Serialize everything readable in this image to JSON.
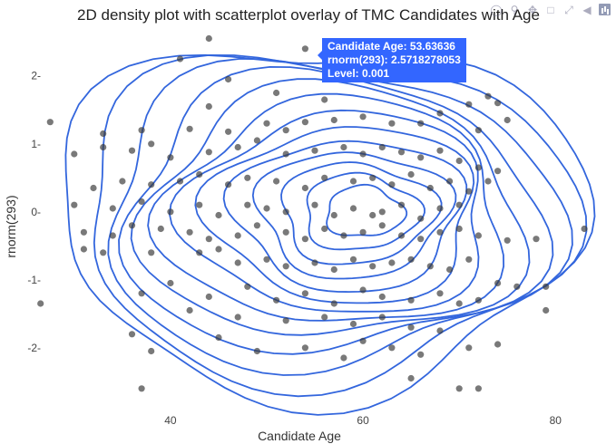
{
  "chart_data": {
    "type": "scatter",
    "title": "2D density plot with scatterplot overlay of TMC Candidates with Age",
    "xlabel": "Candidate Age",
    "ylabel": "rnorm(293)",
    "xlim": [
      27,
      84.5
    ],
    "ylim": [
      -2.95,
      2.65
    ],
    "x_ticks": [
      40,
      60,
      80
    ],
    "y_ticks": [
      2,
      1,
      0,
      -1,
      -2
    ],
    "x_tick_labels": [
      "40",
      "60",
      "80"
    ],
    "y_tick_labels": [
      "2-",
      "1-",
      "0-",
      "-1-",
      "-2-"
    ],
    "grid": false,
    "legend": "none",
    "point_color": "#3a3a3a",
    "contour_color": "#3366dd",
    "contour_center": [
      60.5,
      0.0
    ],
    "contour_levels": 13,
    "points": [
      [
        44,
        2.55
      ],
      [
        41,
        2.25
      ],
      [
        46,
        1.95
      ],
      [
        54,
        2.4
      ],
      [
        58,
        2.15
      ],
      [
        51,
        1.75
      ],
      [
        56,
        1.65
      ],
      [
        44,
        1.55
      ],
      [
        27.5,
        1.32
      ],
      [
        33,
        1.15
      ],
      [
        37,
        1.2
      ],
      [
        38,
        1.0
      ],
      [
        42,
        1.22
      ],
      [
        46,
        1.18
      ],
      [
        50,
        1.3
      ],
      [
        52,
        1.2
      ],
      [
        54,
        1.32
      ],
      [
        57,
        1.35
      ],
      [
        60,
        1.4
      ],
      [
        63,
        1.3
      ],
      [
        66,
        1.3
      ],
      [
        68,
        1.45
      ],
      [
        72,
        1.2
      ],
      [
        75,
        1.35
      ],
      [
        74,
        1.6
      ],
      [
        73,
        1.7
      ],
      [
        71,
        1.58
      ],
      [
        30,
        0.85
      ],
      [
        33,
        0.95
      ],
      [
        36,
        0.9
      ],
      [
        40,
        0.8
      ],
      [
        44,
        0.88
      ],
      [
        47,
        0.95
      ],
      [
        49,
        1.05
      ],
      [
        52,
        0.85
      ],
      [
        55,
        0.9
      ],
      [
        58,
        0.95
      ],
      [
        60,
        0.85
      ],
      [
        62,
        0.95
      ],
      [
        64,
        0.88
      ],
      [
        66,
        0.8
      ],
      [
        68,
        0.9
      ],
      [
        70,
        0.75
      ],
      [
        72,
        0.65
      ],
      [
        74,
        0.6
      ],
      [
        32,
        0.35
      ],
      [
        35,
        0.45
      ],
      [
        38,
        0.4
      ],
      [
        41,
        0.45
      ],
      [
        43,
        0.55
      ],
      [
        46,
        0.4
      ],
      [
        48,
        0.5
      ],
      [
        51,
        0.45
      ],
      [
        54,
        0.35
      ],
      [
        56,
        0.5
      ],
      [
        59,
        0.45
      ],
      [
        61,
        0.5
      ],
      [
        63,
        0.4
      ],
      [
        65,
        0.55
      ],
      [
        67,
        0.35
      ],
      [
        69,
        0.45
      ],
      [
        71,
        0.3
      ],
      [
        73,
        0.45
      ],
      [
        30,
        0.1
      ],
      [
        34,
        0.05
      ],
      [
        37,
        0.15
      ],
      [
        40,
        0.0
      ],
      [
        43,
        0.1
      ],
      [
        45,
        -0.05
      ],
      [
        48,
        0.1
      ],
      [
        50,
        0.05
      ],
      [
        52,
        0.0
      ],
      [
        55,
        0.1
      ],
      [
        57,
        -0.05
      ],
      [
        59,
        0.05
      ],
      [
        61,
        -0.05
      ],
      [
        62,
        0.0
      ],
      [
        64,
        0.1
      ],
      [
        66,
        -0.1
      ],
      [
        68,
        0.05
      ],
      [
        70,
        0.1
      ],
      [
        83,
        -0.25
      ],
      [
        78,
        -0.4
      ],
      [
        75,
        -0.42
      ],
      [
        31,
        -0.3
      ],
      [
        34,
        -0.35
      ],
      [
        36,
        -0.2
      ],
      [
        39,
        -0.25
      ],
      [
        42,
        -0.3
      ],
      [
        44,
        -0.4
      ],
      [
        47,
        -0.35
      ],
      [
        49,
        -0.2
      ],
      [
        52,
        -0.3
      ],
      [
        54,
        -0.4
      ],
      [
        56,
        -0.25
      ],
      [
        58,
        -0.35
      ],
      [
        60,
        -0.3
      ],
      [
        62,
        -0.2
      ],
      [
        64,
        -0.35
      ],
      [
        66,
        -0.4
      ],
      [
        68,
        -0.3
      ],
      [
        70,
        -0.25
      ],
      [
        72,
        -0.35
      ],
      [
        31,
        -0.55
      ],
      [
        33,
        -0.6
      ],
      [
        38,
        -0.6
      ],
      [
        43,
        -0.6
      ],
      [
        45,
        -0.55
      ],
      [
        47,
        -0.75
      ],
      [
        50,
        -0.7
      ],
      [
        52,
        -0.8
      ],
      [
        55,
        -0.75
      ],
      [
        57,
        -0.85
      ],
      [
        59,
        -0.7
      ],
      [
        61,
        -0.8
      ],
      [
        63,
        -0.75
      ],
      [
        65,
        -0.7
      ],
      [
        67,
        -0.8
      ],
      [
        69,
        -0.85
      ],
      [
        71,
        -0.7
      ],
      [
        74,
        -1.05
      ],
      [
        76,
        -1.1
      ],
      [
        79,
        -1.1
      ],
      [
        37,
        -1.2
      ],
      [
        40,
        -1.05
      ],
      [
        44,
        -1.25
      ],
      [
        48,
        -1.1
      ],
      [
        51,
        -1.3
      ],
      [
        54,
        -1.2
      ],
      [
        57,
        -1.35
      ],
      [
        60,
        -1.15
      ],
      [
        62,
        -1.25
      ],
      [
        65,
        -1.3
      ],
      [
        68,
        -1.2
      ],
      [
        70,
        -1.35
      ],
      [
        72,
        -1.3
      ],
      [
        26.5,
        -1.35
      ],
      [
        42,
        -1.45
      ],
      [
        47,
        -1.55
      ],
      [
        52,
        -1.6
      ],
      [
        56,
        -1.55
      ],
      [
        59,
        -1.65
      ],
      [
        62,
        -1.55
      ],
      [
        65,
        -1.7
      ],
      [
        68,
        -1.75
      ],
      [
        79,
        -1.45
      ],
      [
        36,
        -1.8
      ],
      [
        38,
        -2.05
      ],
      [
        45,
        -1.85
      ],
      [
        49,
        -2.05
      ],
      [
        54,
        -2.0
      ],
      [
        58,
        -2.15
      ],
      [
        60,
        -1.9
      ],
      [
        63,
        -2.0
      ],
      [
        66,
        -2.1
      ],
      [
        71,
        -2.0
      ],
      [
        74,
        -1.95
      ],
      [
        65,
        -2.45
      ],
      [
        70,
        -2.6
      ],
      [
        37,
        -2.6
      ],
      [
        72,
        -2.6
      ]
    ]
  },
  "hover_label": {
    "line1": "Candidate Age: 53.63636",
    "line2": "rnorm(293):  2.5718278053",
    "line3": "Level: 0.001"
  },
  "modebar": {
    "icons": [
      "camera-icon",
      "zoom-icon",
      "pan-icon",
      "box-select-icon",
      "lasso-icon",
      "zoom-in-icon",
      "zoom-out-icon",
      "autoscale-icon",
      "reset-axes-icon",
      "spike-lines-icon",
      "hover-closest-icon",
      "hover-compare-icon",
      "plotly-logo"
    ]
  }
}
